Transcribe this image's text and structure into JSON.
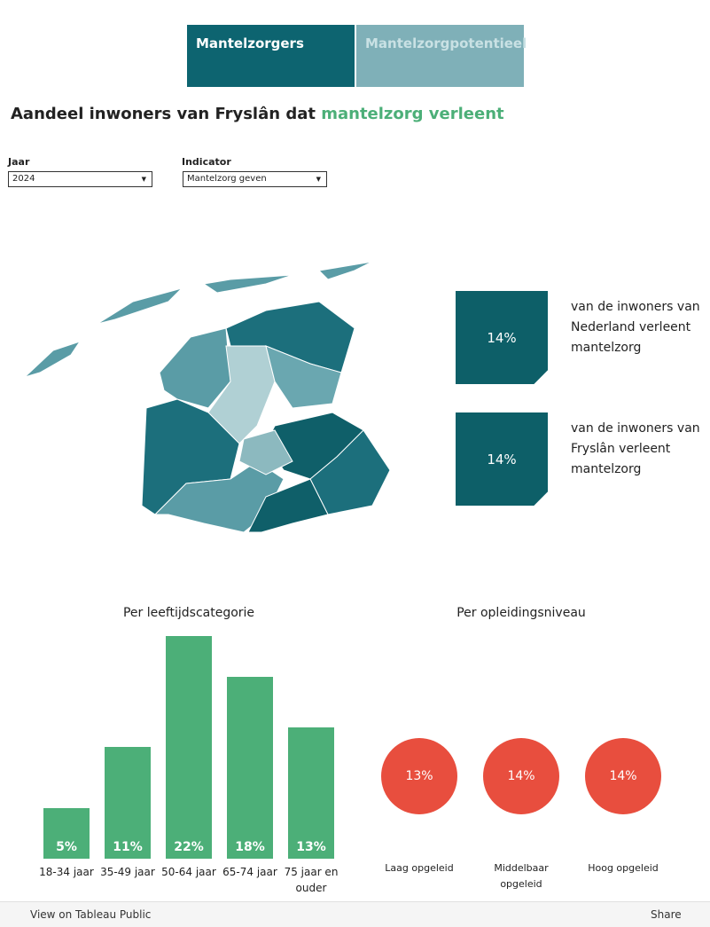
{
  "tabs": [
    "Mantelzorgers",
    "Mantelzorgpotentieel"
  ],
  "title": {
    "prefix": "Aandeel inwoners van Fryslân dat",
    "highlight": "mantelzorg verleent"
  },
  "filters": [
    {
      "label": "Jaar",
      "value": "2024"
    },
    {
      "label": "Indicator",
      "value": "Mantelzorg geven"
    }
  ],
  "kpis": [
    {
      "value_label": "14%",
      "text": "van de inwoners van Nederland verleent mantelzorg"
    },
    {
      "value_label": "14%",
      "text": "van de inwoners van Fryslân verleent mantelzorg"
    }
  ],
  "chart_data": [
    {
      "type": "bar",
      "title": "Per leeftijdscategorie",
      "categories": [
        "18-34 jaar",
        "35-49 jaar",
        "50-64 jaar",
        "65-74 jaar",
        "75 jaar en ouder"
      ],
      "values": [
        5,
        11,
        22,
        18,
        13
      ],
      "value_labels": [
        "5%",
        "11%",
        "22%",
        "18%",
        "13%"
      ],
      "color": "#4caf78"
    },
    {
      "type": "circle",
      "title": "Per opleidingsniveau",
      "categories": [
        "Laag opgeleid",
        "Middelbaar opgeleid",
        "Hoog opgeleid"
      ],
      "values": [
        13,
        14,
        14
      ],
      "value_labels": [
        "13%",
        "14%",
        "14%"
      ],
      "color": "#e84e3e"
    }
  ],
  "toolbar": {
    "link": "View on Tableau Public",
    "share": "Share"
  }
}
